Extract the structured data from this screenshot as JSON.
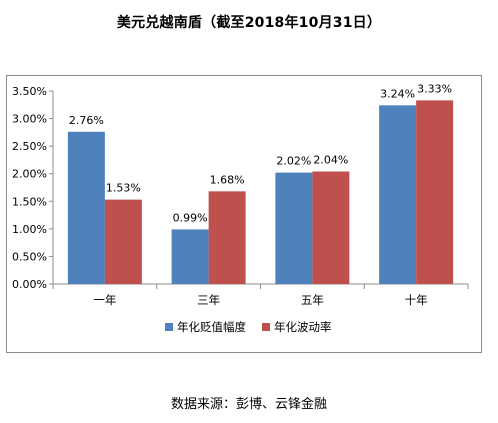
{
  "title": "美元兑越南盾（截至2018年10月31日）",
  "source": "数据来源：彭博、云锋金融",
  "chart_data": {
    "type": "bar",
    "categories": [
      "一年",
      "三年",
      "五年",
      "十年"
    ],
    "series": [
      {
        "name": "年化贬值幅度",
        "color": "#4f81bd",
        "values": [
          2.76,
          0.99,
          2.02,
          3.24
        ],
        "labels": [
          "2.76%",
          "0.99%",
          "2.02%",
          "3.24%"
        ]
      },
      {
        "name": "年化波动率",
        "color": "#c0504d",
        "values": [
          1.53,
          1.68,
          2.04,
          3.33
        ],
        "labels": [
          "1.53%",
          "1.68%",
          "2.04%",
          "3.33%"
        ]
      }
    ],
    "ylim": [
      0,
      3.5
    ],
    "yticks": [
      "0.00%",
      "0.50%",
      "1.00%",
      "1.50%",
      "2.00%",
      "2.50%",
      "3.00%",
      "3.50%"
    ],
    "ytick_values": [
      0,
      0.5,
      1,
      1.5,
      2,
      2.5,
      3,
      3.5
    ],
    "grid": false,
    "legend_position": "bottom"
  }
}
